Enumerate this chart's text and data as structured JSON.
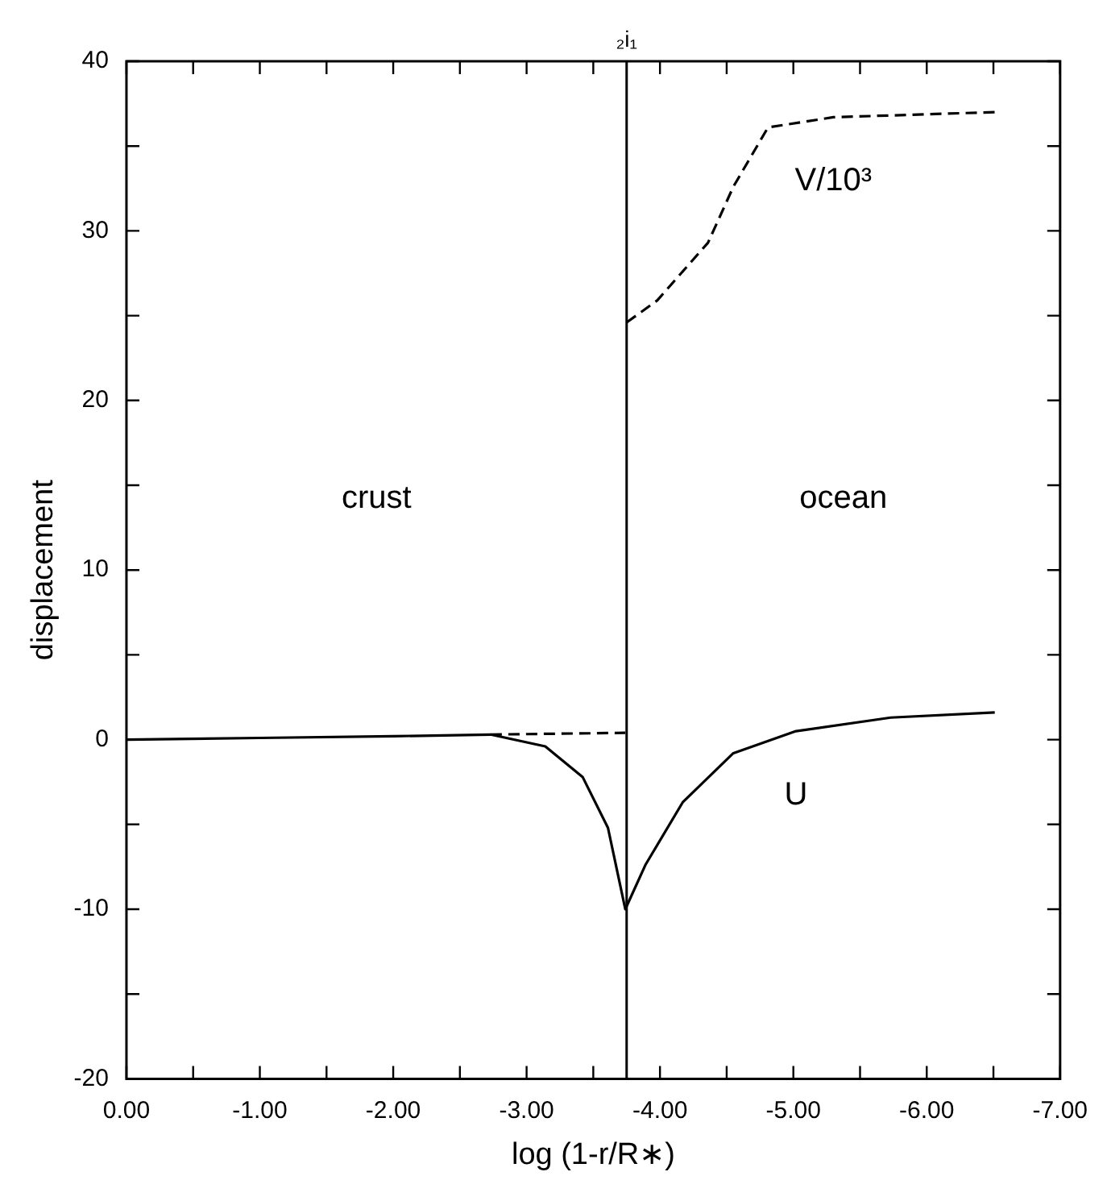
{
  "chart_data": {
    "type": "line",
    "xlabel": "log (1-r/R∗)",
    "ylabel": "displacement",
    "xlim": [
      0,
      -7.0
    ],
    "xticks": [
      {
        "value": 0,
        "label": "0.00"
      },
      {
        "value": -0.5,
        "label": null
      },
      {
        "value": -1,
        "label": "-1.00"
      },
      {
        "value": -1.5,
        "label": null
      },
      {
        "value": -2,
        "label": "-2.00"
      },
      {
        "value": -2.5,
        "label": null
      },
      {
        "value": -3,
        "label": "-3.00"
      },
      {
        "value": -3.5,
        "label": null
      },
      {
        "value": -4,
        "label": "-4.00"
      },
      {
        "value": -4.5,
        "label": null
      },
      {
        "value": -5,
        "label": "-5.00"
      },
      {
        "value": -5.5,
        "label": null
      },
      {
        "value": -6,
        "label": "-6.00"
      },
      {
        "value": -6.5,
        "label": null
      },
      {
        "value": -7,
        "label": "-7.00"
      }
    ],
    "ylim": [
      -20,
      40
    ],
    "yticks": [
      -20,
      {
        "value": -15,
        "label": null
      },
      -10,
      {
        "value": -5,
        "label": null
      },
      0,
      {
        "value": 5,
        "label": null
      },
      10,
      {
        "value": 15,
        "label": null
      },
      20,
      {
        "value": 25,
        "label": null
      },
      30,
      {
        "value": 35,
        "label": null
      },
      40
    ],
    "series": [
      {
        "name": "U",
        "color": "#000000",
        "line_style": "solid",
        "x": [
          0,
          -1,
          -2,
          -2.73,
          -3.14,
          -3.42,
          -3.61,
          -3.74,
          -3.89,
          -4.17,
          -4.55,
          -5.02,
          -5.73,
          -6.51
        ],
        "values": [
          0,
          0.1,
          0.2,
          0.3,
          -0.4,
          -2.2,
          -5.2,
          -10,
          -7.4,
          -3.7,
          -0.8,
          0.5,
          1.3,
          1.6
        ]
      },
      {
        "name": "V/10³",
        "color": "#000000",
        "line_style": "dashed",
        "x": [
          -2.73,
          -3.74,
          -3.745,
          -3.75,
          -3.98,
          -4.36,
          -4.55,
          -4.81,
          -5.3,
          -6.51
        ],
        "values": [
          0.3,
          0.4,
          null,
          24.6,
          25.9,
          29.3,
          32.6,
          36.1,
          36.7,
          37.0
        ]
      }
    ],
    "ref_lines": [
      {
        "axis": "x",
        "value": -3.75,
        "label": "₂i₁",
        "color": "#000000"
      }
    ],
    "annotations": [
      "crust",
      "ocean"
    ],
    "marker": "none",
    "grid": false,
    "legend": false
  }
}
